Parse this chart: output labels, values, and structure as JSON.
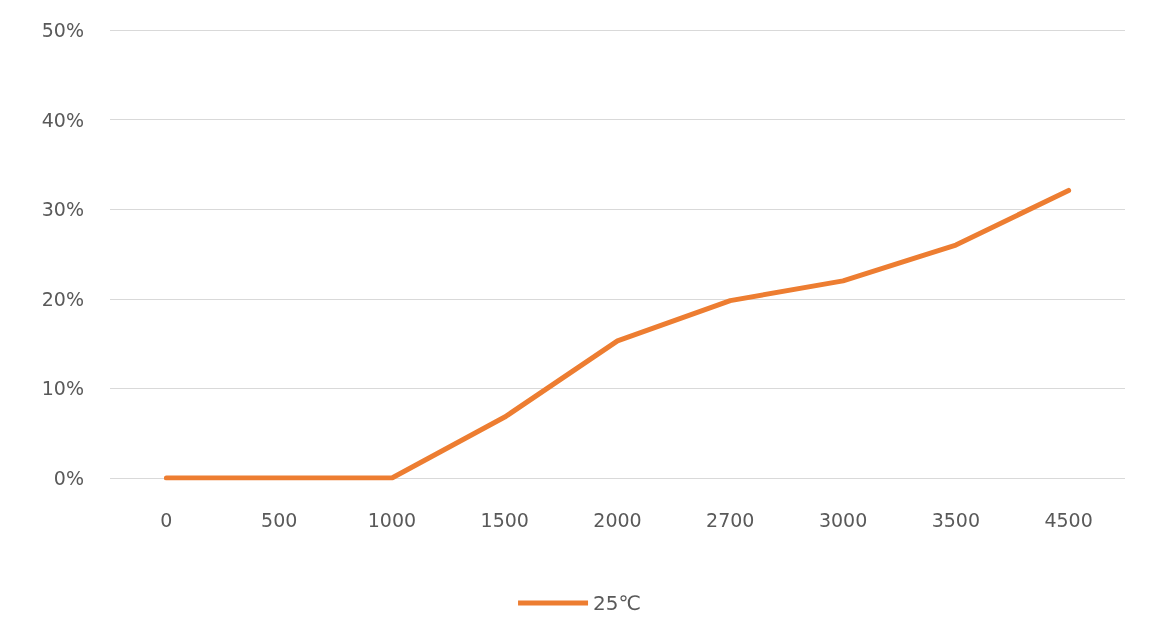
{
  "chart_data": {
    "type": "line",
    "categories": [
      "0",
      "500",
      "1000",
      "1500",
      "2000",
      "2700",
      "3000",
      "3500",
      "4500"
    ],
    "series": [
      {
        "name": "25℃",
        "color": "#ed7d31",
        "values": [
          0,
          0,
          0,
          6.8,
          15.3,
          19.8,
          22.0,
          26.0,
          32.1
        ]
      }
    ],
    "ylim": [
      0,
      50
    ],
    "yticks": [
      {
        "value": 0,
        "label": "0%"
      },
      {
        "value": 10,
        "label": "10%"
      },
      {
        "value": 20,
        "label": "20%"
      },
      {
        "value": 30,
        "label": "30%"
      },
      {
        "value": 40,
        "label": "40%"
      },
      {
        "value": 50,
        "label": "50%"
      }
    ],
    "grid": "y",
    "legend": "bottom",
    "marker": "none",
    "line_style": "solid"
  }
}
